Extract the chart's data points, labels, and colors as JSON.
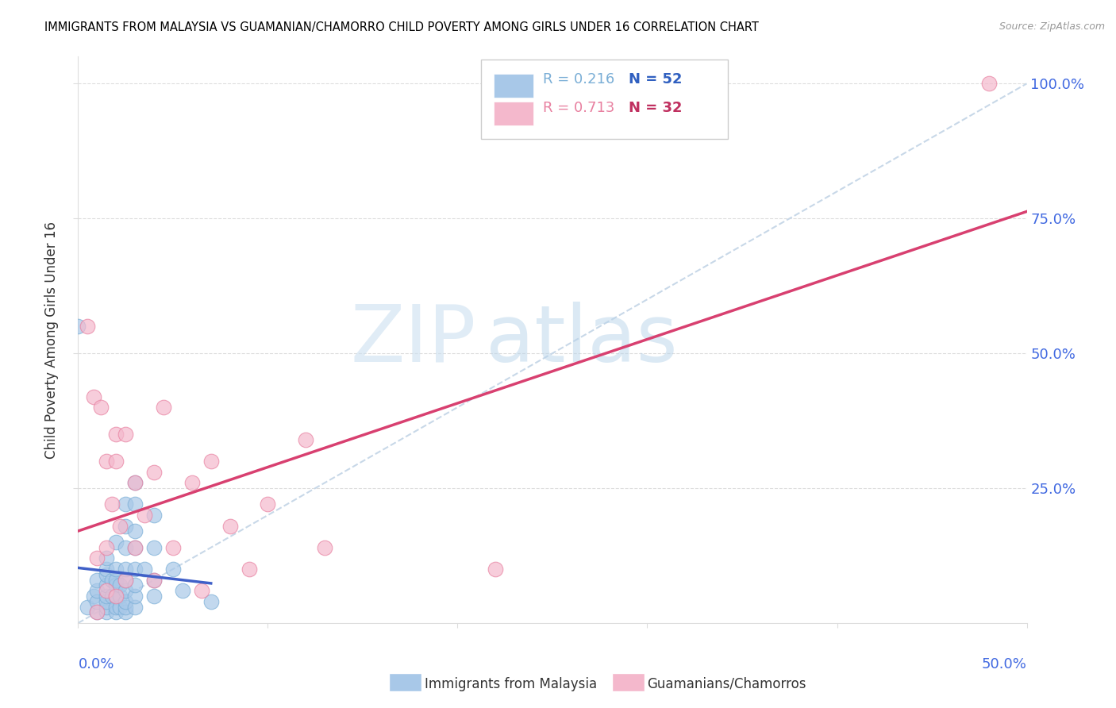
{
  "title": "IMMIGRANTS FROM MALAYSIA VS GUAMANIAN/CHAMORRO CHILD POVERTY AMONG GIRLS UNDER 16 CORRELATION CHART",
  "source": "Source: ZipAtlas.com",
  "ylabel": "Child Poverty Among Girls Under 16",
  "xlim": [
    0.0,
    0.5
  ],
  "ylim": [
    0.0,
    1.05
  ],
  "blue_color": "#a8c8e8",
  "blue_edge_color": "#7aaed6",
  "pink_color": "#f4b8cc",
  "pink_edge_color": "#e880a0",
  "blue_line_color": "#4060c8",
  "pink_line_color": "#d84070",
  "diagonal_color": "#c8d8e8",
  "bottom_legend_blue": "Immigrants from Malaysia",
  "bottom_legend_pink": "Guamanians/Chamorros",
  "legend_R1": "R = 0.216",
  "legend_N1": "N = 52",
  "legend_R2": "R = 0.713",
  "legend_N2": "N = 32",
  "legend_R_color1": "#7aaed6",
  "legend_N_color1": "#3060c0",
  "legend_R_color2": "#e880a0",
  "legend_N_color2": "#c03060",
  "malaysia_x": [
    0.0,
    0.005,
    0.008,
    0.01,
    0.01,
    0.01,
    0.01,
    0.015,
    0.015,
    0.015,
    0.015,
    0.015,
    0.015,
    0.015,
    0.015,
    0.018,
    0.018,
    0.02,
    0.02,
    0.02,
    0.02,
    0.02,
    0.02,
    0.02,
    0.022,
    0.022,
    0.022,
    0.025,
    0.025,
    0.025,
    0.025,
    0.025,
    0.025,
    0.025,
    0.025,
    0.025,
    0.03,
    0.03,
    0.03,
    0.03,
    0.03,
    0.03,
    0.03,
    0.03,
    0.035,
    0.04,
    0.04,
    0.04,
    0.04,
    0.05,
    0.055,
    0.07
  ],
  "malaysia_y": [
    0.55,
    0.03,
    0.05,
    0.02,
    0.04,
    0.06,
    0.08,
    0.02,
    0.03,
    0.04,
    0.05,
    0.07,
    0.09,
    0.1,
    0.12,
    0.05,
    0.08,
    0.02,
    0.03,
    0.05,
    0.07,
    0.08,
    0.1,
    0.15,
    0.03,
    0.05,
    0.07,
    0.02,
    0.03,
    0.04,
    0.06,
    0.08,
    0.1,
    0.14,
    0.18,
    0.22,
    0.03,
    0.05,
    0.07,
    0.1,
    0.14,
    0.17,
    0.22,
    0.26,
    0.1,
    0.05,
    0.08,
    0.14,
    0.2,
    0.1,
    0.06,
    0.04
  ],
  "chamorro_x": [
    0.005,
    0.008,
    0.01,
    0.01,
    0.012,
    0.015,
    0.015,
    0.015,
    0.018,
    0.02,
    0.02,
    0.02,
    0.022,
    0.025,
    0.025,
    0.03,
    0.03,
    0.035,
    0.04,
    0.04,
    0.045,
    0.05,
    0.06,
    0.065,
    0.07,
    0.08,
    0.09,
    0.1,
    0.12,
    0.13,
    0.22,
    0.48
  ],
  "chamorro_y": [
    0.55,
    0.42,
    0.02,
    0.12,
    0.4,
    0.06,
    0.14,
    0.3,
    0.22,
    0.05,
    0.3,
    0.35,
    0.18,
    0.08,
    0.35,
    0.14,
    0.26,
    0.2,
    0.08,
    0.28,
    0.4,
    0.14,
    0.26,
    0.06,
    0.3,
    0.18,
    0.1,
    0.22,
    0.34,
    0.14,
    0.1,
    1.0
  ]
}
